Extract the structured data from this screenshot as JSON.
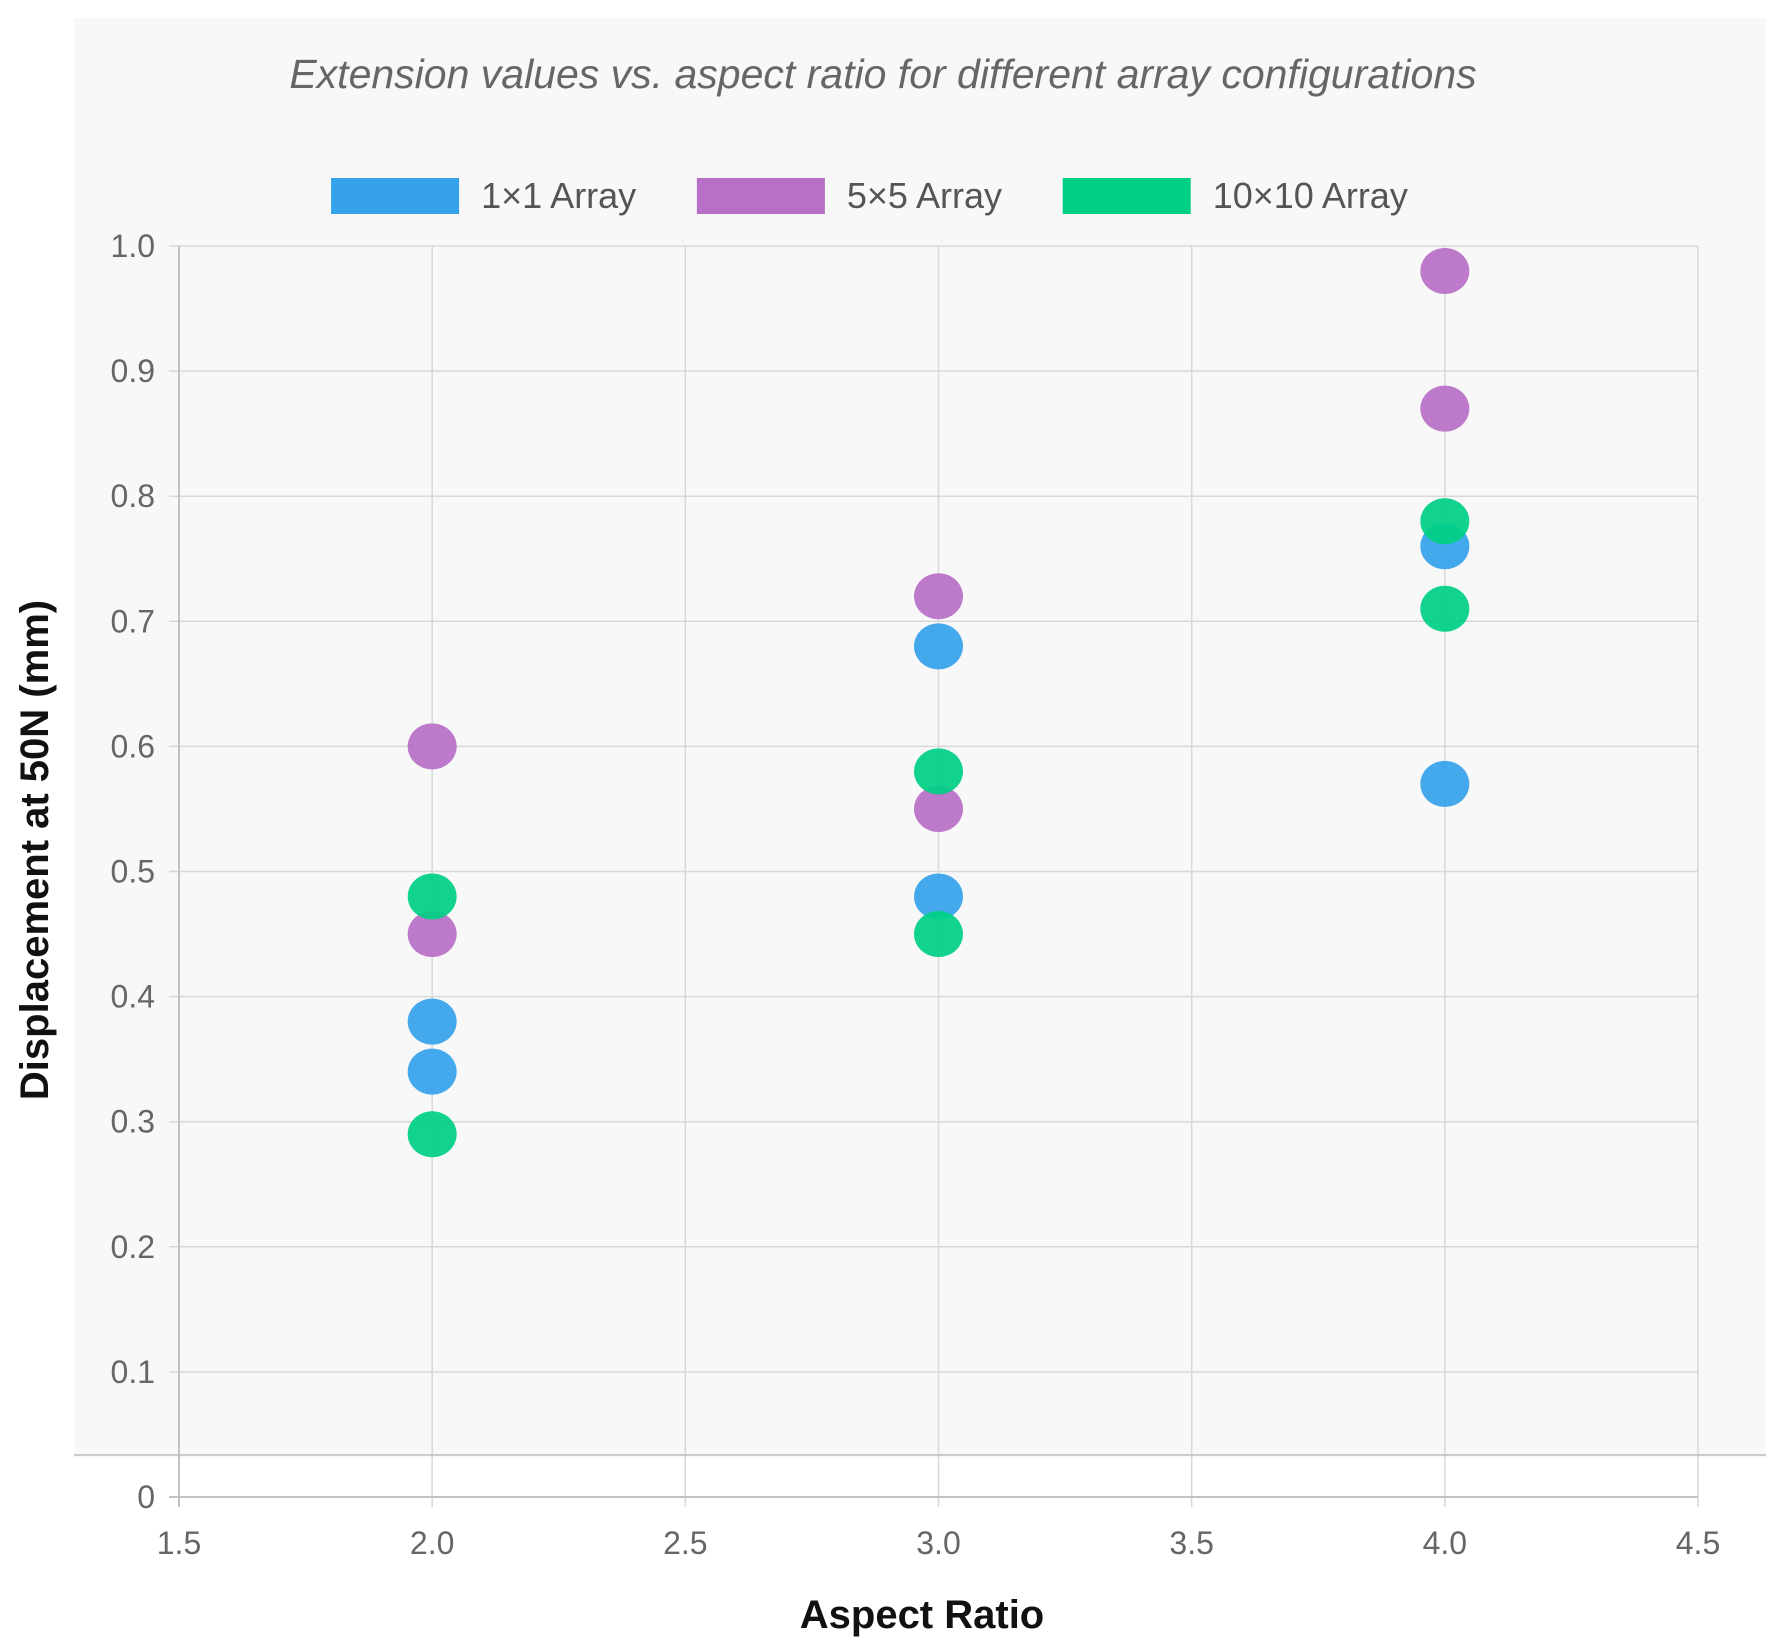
{
  "chart_data": {
    "type": "scatter",
    "title": "Extension values vs. aspect ratio for different array configurations",
    "xlabel": "Aspect Ratio",
    "ylabel": "Displacement at 50N (mm)",
    "xlim": [
      1.5,
      4.5
    ],
    "ylim": [
      0,
      1.0
    ],
    "xticks": [
      {
        "value": 1.5,
        "label": "1.5"
      },
      {
        "value": 2.0,
        "label": "2.0"
      },
      {
        "value": 2.5,
        "label": "2.5"
      },
      {
        "value": 3.0,
        "label": "3.0"
      },
      {
        "value": 3.5,
        "label": "3.5"
      },
      {
        "value": 4.0,
        "label": "4.0"
      },
      {
        "value": 4.5,
        "label": "4.5"
      }
    ],
    "yticks": [
      {
        "value": 0,
        "label": "0"
      },
      {
        "value": 0.1,
        "label": "0.1"
      },
      {
        "value": 0.2,
        "label": "0.2"
      },
      {
        "value": 0.3,
        "label": "0.3"
      },
      {
        "value": 0.4,
        "label": "0.4"
      },
      {
        "value": 0.5,
        "label": "0.5"
      },
      {
        "value": 0.6,
        "label": "0.6"
      },
      {
        "value": 0.7,
        "label": "0.7"
      },
      {
        "value": 0.8,
        "label": "0.8"
      },
      {
        "value": 0.9,
        "label": "0.9"
      },
      {
        "value": 1.0,
        "label": "1.0"
      }
    ],
    "grid": true,
    "legend_position": "top-center",
    "series": [
      {
        "name": "1×1 Array",
        "color": "#36a2eb",
        "points": [
          {
            "x": 2.0,
            "y": 0.38
          },
          {
            "x": 2.0,
            "y": 0.34
          },
          {
            "x": 3.0,
            "y": 0.68
          },
          {
            "x": 3.0,
            "y": 0.48
          },
          {
            "x": 4.0,
            "y": 0.76
          },
          {
            "x": 4.0,
            "y": 0.57
          }
        ]
      },
      {
        "name": "5×5 Array",
        "color": "#b86fc6",
        "points": [
          {
            "x": 2.0,
            "y": 0.6
          },
          {
            "x": 2.0,
            "y": 0.45
          },
          {
            "x": 3.0,
            "y": 0.72
          },
          {
            "x": 3.0,
            "y": 0.55
          },
          {
            "x": 4.0,
            "y": 0.98
          },
          {
            "x": 4.0,
            "y": 0.87
          }
        ]
      },
      {
        "name": "10×10 Array",
        "color": "#00d084",
        "points": [
          {
            "x": 2.0,
            "y": 0.48
          },
          {
            "x": 2.0,
            "y": 0.29
          },
          {
            "x": 3.0,
            "y": 0.58
          },
          {
            "x": 3.0,
            "y": 0.45
          },
          {
            "x": 4.0,
            "y": 0.78
          },
          {
            "x": 4.0,
            "y": 0.71
          }
        ]
      }
    ]
  }
}
